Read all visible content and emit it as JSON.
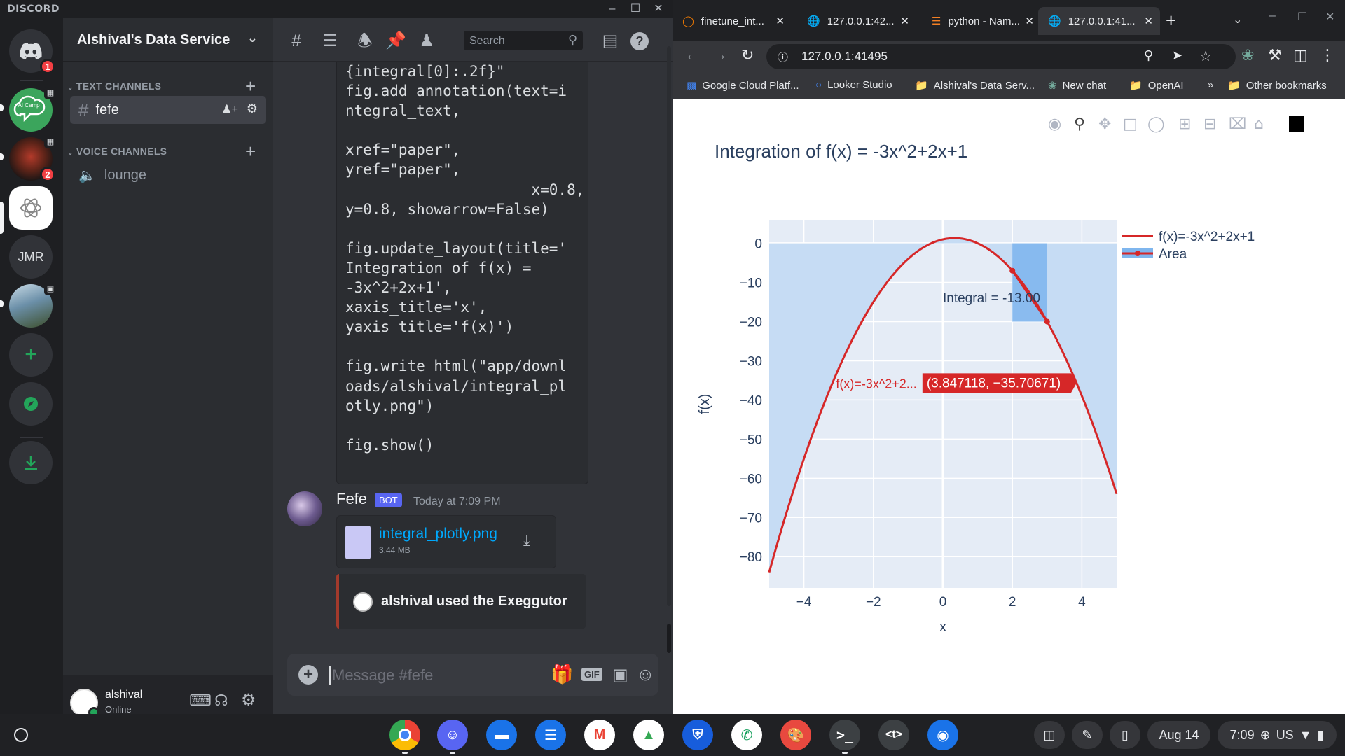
{
  "discord": {
    "app_logo": "DISCORD",
    "server_name": "Alshival's Data Service",
    "home_badge": "1",
    "guild_badge_2": "2",
    "guild_jmr": "JMR",
    "aicamp_label": "AI Camp",
    "categories": {
      "text": "TEXT CHANNELS",
      "voice": "VOICE CHANNELS"
    },
    "channels": {
      "text": [
        "fefe"
      ],
      "voice": [
        "lounge"
      ]
    },
    "search_placeholder": "Search",
    "code_lines": [
      "{integral[0]:.2f}\"",
      "fig.add_annotation(text=i",
      "ntegral_text,",
      "",
      "xref=\"paper\",",
      "yref=\"paper\",",
      "                     x=0.8,",
      "y=0.8, showarrow=False)",
      "",
      "fig.update_layout(title='",
      "Integration of f(x) =",
      "-3x^2+2x+1',",
      "xaxis_title='x',",
      "yaxis_title='f(x)')",
      "",
      "fig.write_html(\"app/downl",
      "oads/alshival/integral_pl",
      "otly.png\")",
      "",
      "fig.show()"
    ],
    "message": {
      "author": "Fefe",
      "badge": "BOT",
      "timestamp": "Today at 7:09 PM",
      "file_name": "integral_plotly.png",
      "file_size": "3.44 MB",
      "embed_text": "alshival used the Exeggutor"
    },
    "input_placeholder": "Message #fefe",
    "gif_label": "GIF",
    "user": {
      "name": "alshival",
      "status": "Online"
    }
  },
  "browser": {
    "tabs": [
      {
        "title": "finetune_int..."
      },
      {
        "title": "127.0.0.1:42..."
      },
      {
        "title": "python - Nam..."
      },
      {
        "title": "127.0.0.1:41..."
      }
    ],
    "url": "127.0.0.1:41495",
    "bookmarks": [
      "Google Cloud Platf...",
      "Looker Studio",
      "Alshival's Data Serv...",
      "New chat",
      "OpenAI",
      "Other bookmarks"
    ],
    "bookmarks_more": "»"
  },
  "chart_data": {
    "type": "line",
    "title": "Integration of f(x) = -3x^2+2x+1",
    "xlabel": "x",
    "ylabel": "f(x)",
    "xlim": [
      -5,
      5
    ],
    "ylim": [
      -88,
      6
    ],
    "xticks": [
      -4,
      -2,
      0,
      2,
      4
    ],
    "yticks": [
      0,
      -10,
      -20,
      -30,
      -40,
      -50,
      -60,
      -70,
      -80
    ],
    "grid": true,
    "legend_placement": "top-right",
    "series": [
      {
        "name": "f(x)=-3x^2+2x+1",
        "expression": "-3x^2+2x+1",
        "x_range": [
          -5,
          5
        ],
        "color": "#d62728"
      },
      {
        "name": "Area",
        "x": [
          2,
          3
        ],
        "y": [
          -7,
          -20
        ],
        "color": "#d62728",
        "fill_color": "#7fb6ee"
      }
    ],
    "annotation": "Integral = -13.00",
    "hover": {
      "label": "f(x)=-3x^2+2...",
      "value": "(3.847118, −35.70671)",
      "x": 3.847118,
      "y": -35.70671
    }
  },
  "shelf": {
    "date": "Aug 14",
    "time": "7:09",
    "locale": "US"
  },
  "colors": {
    "discord_bg": "#313338",
    "blurple": "#5865f2",
    "link": "#00a8fc",
    "plot_bg": "#e5ecf6",
    "area_fill": "#c6dcf4"
  }
}
